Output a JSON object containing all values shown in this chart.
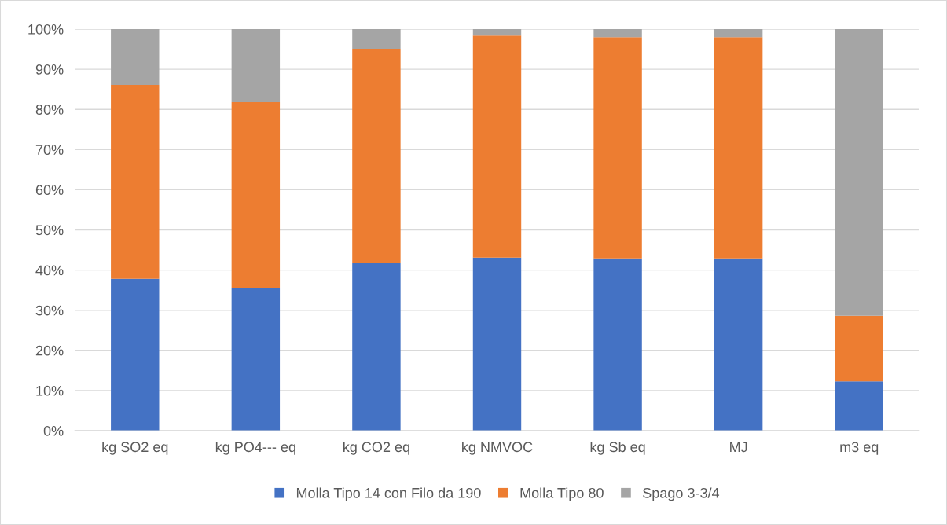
{
  "chart_data": {
    "type": "bar",
    "stacked": true,
    "categories": [
      "kg SO2 eq",
      "kg PO4--- eq",
      "kg CO2 eq",
      "kg NMVOC",
      "kg Sb eq",
      "MJ",
      "m3 eq"
    ],
    "series": [
      {
        "name": "Molla Tipo 14 con Filo da 190",
        "color": "#4472c4",
        "values": [
          37.8,
          35.6,
          41.7,
          43.1,
          42.9,
          42.9,
          12.3
        ]
      },
      {
        "name": "Molla Tipo 80",
        "color": "#ed7d31",
        "values": [
          48.3,
          46.2,
          53.4,
          55.3,
          55.1,
          55.1,
          16.3
        ]
      },
      {
        "name": "Spago 3-3/4",
        "color": "#a5a5a5",
        "values": [
          13.9,
          18.2,
          4.9,
          1.6,
          2.0,
          2.0,
          71.4
        ]
      }
    ],
    "ylim": [
      0,
      100
    ],
    "yticks": [
      {
        "value": 0,
        "label": "0%"
      },
      {
        "value": 10,
        "label": "10%"
      },
      {
        "value": 20,
        "label": "20%"
      },
      {
        "value": 30,
        "label": "30%"
      },
      {
        "value": 40,
        "label": "40%"
      },
      {
        "value": 50,
        "label": "50%"
      },
      {
        "value": 60,
        "label": "60%"
      },
      {
        "value": 70,
        "label": "70%"
      },
      {
        "value": 80,
        "label": "80%"
      },
      {
        "value": 90,
        "label": "90%"
      },
      {
        "value": 100,
        "label": "100%"
      }
    ],
    "grid": "y",
    "legend": "bottom"
  }
}
